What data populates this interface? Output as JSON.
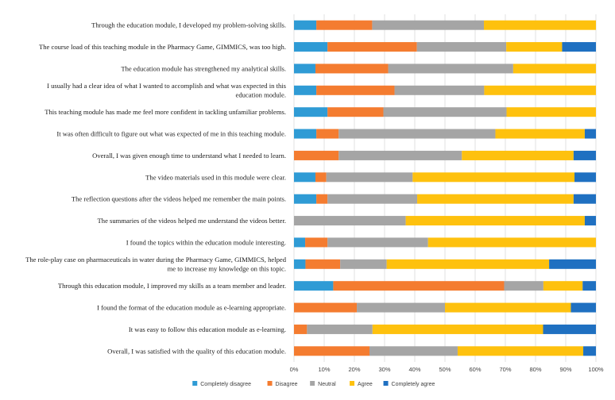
{
  "chart_data": {
    "type": "bar",
    "orientation": "horizontal",
    "stacked": "percent",
    "title": "",
    "xlabel": "",
    "ylabel": "",
    "xlim": [
      0,
      100
    ],
    "x_ticks": [
      "0%",
      "10%",
      "20%",
      "30%",
      "40%",
      "50%",
      "60%",
      "70%",
      "80%",
      "90%",
      "100%"
    ],
    "grid": "vertical",
    "legend_position": "bottom",
    "categories": [
      "Through the education module, I developed my problem-solving skills.",
      "The course load of this teaching module in the Pharmacy Game, GIMMICS, was too high.",
      "The education module has strengthened my analytical skills.",
      "I usually had a clear idea of what I wanted to accomplish and what was expected in this education module.",
      "This teaching module has made me feel more confident in tackling unfamiliar problems.",
      "It was often difficult to figure out what was expected of me in this teaching module.",
      "Overall, I was given enough time to understand what I needed to learn.",
      "The video materials used in this module were clear.",
      "The reflection questions after the videos helped me remember the main points.",
      "The summaries of the videos helped me understand the videos better.",
      "I found the topics within the education module interesting.",
      "The role-play case on pharmaceuticals in water during the Pharmacy Game, GIMMICS, helped me to increase my knowledge on this topic.",
      "Through this education module, I improved my skills as a team member and leader.",
      "I found the format of the education module as e-learning appropriate.",
      "It was easy to follow this education module as e-learning.",
      "Overall, I was satisfied with the quality of this education module."
    ],
    "series": [
      {
        "name": "Completely disagree",
        "color": "#2f9bd5",
        "values": [
          7.4,
          11.1,
          7.1,
          7.4,
          11.1,
          7.4,
          0,
          7.1,
          7.4,
          0,
          3.7,
          3.8,
          13,
          0,
          0,
          0
        ]
      },
      {
        "name": "Disagree",
        "color": "#f47c30",
        "values": [
          18.5,
          29.6,
          24.1,
          25.9,
          18.5,
          7.4,
          14.8,
          3.6,
          3.7,
          0,
          7.4,
          11.5,
          56.6,
          20.8,
          4.3,
          25
        ]
      },
      {
        "name": "Neutral",
        "color": "#a5a5a5",
        "values": [
          37,
          29.6,
          41.4,
          29.7,
          40.8,
          51.9,
          40.8,
          28.6,
          29.7,
          37,
          33.3,
          15.4,
          13,
          29.2,
          21.7,
          29.2
        ]
      },
      {
        "name": "Agree",
        "color": "#fec10e",
        "values": [
          37.1,
          18.5,
          27.4,
          37,
          29.6,
          29.6,
          37,
          53.6,
          51.8,
          59.3,
          55.6,
          53.8,
          13,
          41.7,
          56.5,
          41.6
        ]
      },
      {
        "name": "Completely agree",
        "color": "#1f70c1",
        "values": [
          0,
          11.2,
          0,
          0,
          0,
          3.7,
          7.4,
          7.1,
          7.4,
          3.7,
          0,
          15.5,
          4.4,
          8.3,
          17.5,
          4.2
        ]
      }
    ]
  }
}
